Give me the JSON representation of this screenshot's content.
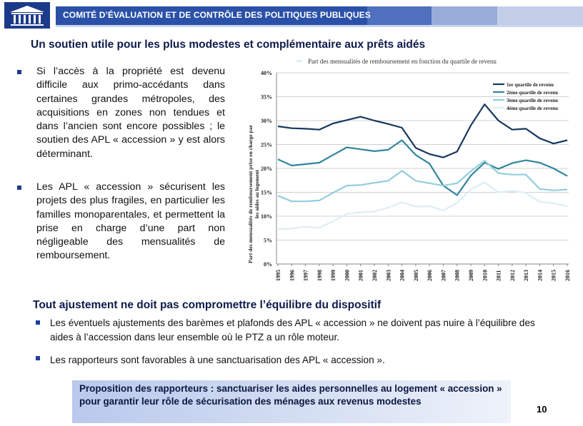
{
  "header": {
    "title": "COMITÉ D’ÉVALUATION ET DE CONTRÔLE DES POLITIQUES PUBLIQUES"
  },
  "main_title": "Un soutien utile pour les plus modestes et complémentaire aux prêts aidés",
  "left_paragraphs": [
    "Si l’accès à la propriété est devenu difficile aux primo-accédants dans certaines grandes métropoles, des acquisitions en zones non tendues et dans l’ancien sont encore possibles ; le soutien des APL « accession » y est alors déterminant.",
    "Les APL « accession » sécurisent les projets des plus fragiles, en particulier les familles monoparentales, et permettent la prise en charge d’une part non négligeable des mensualités de remboursement."
  ],
  "section_title": "Tout ajustement ne doit pas compromettre l’équilibre du dispositif",
  "bullets": [
    "Les éventuels ajustements des barèmes et plafonds des APL « accession » ne doivent pas nuire à l’équilibre des aides à l’accession dans leur ensemble où le PTZ a un rôle moteur.",
    "Les rapporteurs sont favorables à une sanctuarisation des APL « accession »."
  ],
  "proposal": "Proposition des rapporteurs : sanctuariser les aides personnelles au logement « accession » pour garantir leur rôle de sécurisation des ménages aux revenus modestes",
  "page_number": "10",
  "chart_data": {
    "type": "line",
    "title": "Part des mensualités de remboursement en fonction du quartile de revenu",
    "ylabel": "Part des mensualités de remboursement prise en charge par les aides au logement",
    "xlabel": "",
    "x": [
      "1995",
      "1996",
      "1997",
      "1998",
      "1999",
      "2000",
      "2001",
      "2002",
      "2003",
      "2004",
      "2005",
      "2006",
      "2007",
      "2008",
      "2009",
      "2010",
      "2011",
      "2012",
      "2013",
      "2014",
      "2015",
      "2016"
    ],
    "ylim": [
      0,
      40
    ],
    "yticks": [
      "0%",
      "5%",
      "10%",
      "15%",
      "20%",
      "25%",
      "30%",
      "35%",
      "40%"
    ],
    "grid": true,
    "legend_position": "top-right",
    "series": [
      {
        "name": "1er quartile de revenu",
        "color": "#17375e",
        "values": [
          28.8,
          28.4,
          28.3,
          28.1,
          29.4,
          30.1,
          30.8,
          30.0,
          29.3,
          28.5,
          24.3,
          23.0,
          22.3,
          23.5,
          29.0,
          33.4,
          30.0,
          28.1,
          28.3,
          26.3,
          25.2,
          25.9
        ]
      },
      {
        "name": "2ème quartile de revenu",
        "color": "#31859c",
        "values": [
          21.9,
          20.6,
          20.9,
          21.2,
          22.8,
          24.4,
          24.0,
          23.6,
          23.9,
          25.9,
          22.8,
          21.0,
          16.4,
          14.4,
          18.5,
          21.2,
          19.9,
          21.1,
          21.7,
          21.2,
          20.0,
          18.4
        ]
      },
      {
        "name": "3ème quartile de revenu",
        "color": "#93cddd",
        "values": [
          14.3,
          13.1,
          13.1,
          13.3,
          14.9,
          16.4,
          16.5,
          17.0,
          17.4,
          19.5,
          17.4,
          16.9,
          16.4,
          16.9,
          19.4,
          21.6,
          19.0,
          18.7,
          18.7,
          15.7,
          15.4,
          15.6
        ]
      },
      {
        "name": "4ème quartile de revenu",
        "color": "#dbeef4",
        "values": [
          7.3,
          7.4,
          7.8,
          7.6,
          8.9,
          10.5,
          10.8,
          11.0,
          11.8,
          12.9,
          12.0,
          12.1,
          11.2,
          12.8,
          15.6,
          17.1,
          15.0,
          15.3,
          14.9,
          13.0,
          12.7,
          12.1
        ]
      }
    ]
  }
}
